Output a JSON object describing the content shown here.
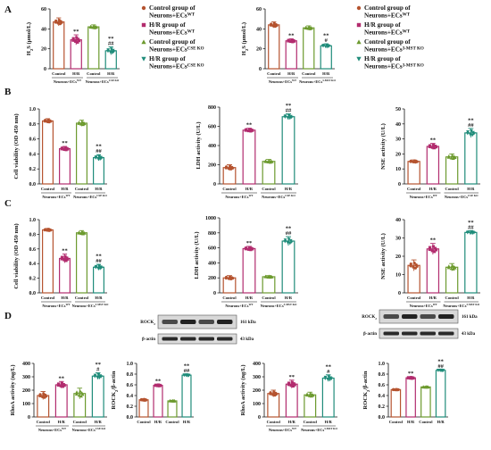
{
  "panel_letters": [
    "A",
    "B",
    "C",
    "D"
  ],
  "colors": {
    "control_wt": "#b5532f",
    "hr_wt": "#b22c6e",
    "control_ko": "#6c9a2e",
    "hr_ko": "#1f8c7a"
  },
  "legends": [
    {
      "entries": [
        {
          "label": "Control group of",
          "label2": "Neurons+ECsWT",
          "symbol": "circle",
          "color": "#b5532f"
        },
        {
          "label": "H/R group of",
          "label2": "Neurons+ECsWT",
          "symbol": "square",
          "color": "#b22c6e"
        },
        {
          "label": "Control group of",
          "label2": "Neurons+ECsCSE KO",
          "symbol": "triangle",
          "color": "#6c9a2e"
        },
        {
          "label": "H/R group of",
          "label2": "Neurons+ECsCSE KO",
          "symbol": "tri-down",
          "color": "#1f8c7a"
        }
      ]
    },
    {
      "entries": [
        {
          "label": "Control group of",
          "label2": "Neurons+ECsWT",
          "symbol": "circle",
          "color": "#b5532f"
        },
        {
          "label": "H/R group of",
          "label2": "Neurons+ECsWT",
          "symbol": "square",
          "color": "#b22c6e"
        },
        {
          "label": "Control group of",
          "label2": "Neurons+ECs3-MST KO",
          "symbol": "triangle",
          "color": "#6c9a2e"
        },
        {
          "label": "H/R group of",
          "label2": "Neurons+ECs3-MST KO",
          "symbol": "tri-down",
          "color": "#1f8c7a"
        }
      ]
    }
  ],
  "blots": [
    {
      "bands": [
        "ROCK2",
        "β-actin"
      ],
      "sizes": [
        "161 kDa",
        "43 kDa"
      ]
    },
    {
      "bands": [
        "ROCK2",
        "β-actin"
      ],
      "sizes": [
        "161 kDa",
        "43 kDa"
      ]
    }
  ],
  "chart_data": [
    {
      "id": "A1",
      "type": "bar",
      "ylabel": "H2S (μmol/L)",
      "ylim": [
        0,
        60
      ],
      "yticks": [
        0,
        20,
        40,
        60
      ],
      "categories": [
        "Control",
        "H/R",
        "Control",
        "H/R"
      ],
      "groups": [
        "Neurons+ECsWT",
        "Neurons+ECsCSE KO"
      ],
      "values": [
        47,
        29,
        42,
        18
      ],
      "errors": [
        4,
        5,
        2,
        4
      ],
      "sig": [
        "",
        "**",
        "",
        "**\n##"
      ]
    },
    {
      "id": "A2",
      "type": "bar",
      "ylabel": "H2S (μmol/L)",
      "ylim": [
        0,
        60
      ],
      "yticks": [
        0,
        20,
        40,
        60
      ],
      "categories": [
        "Control",
        "H/R",
        "Control",
        "H/R"
      ],
      "groups": [
        "Neurons+ECsWT",
        "Neurons+ECs3-MST KO"
      ],
      "values": [
        44,
        28,
        41,
        23
      ],
      "errors": [
        3,
        2,
        2,
        2
      ],
      "sig": [
        "",
        "**",
        "",
        "**\n#"
      ]
    },
    {
      "id": "B1",
      "type": "bar",
      "ylabel": "Cell viability (OD 450 nm)",
      "ylim": [
        0,
        1.0
      ],
      "yticks": [
        0.0,
        0.2,
        0.4,
        0.6,
        0.8,
        1.0
      ],
      "categories": [
        "Control",
        "H/R",
        "Control",
        "H/R"
      ],
      "groups": [
        "Neurons+ECsWT",
        "Neurons+ECsCSE KO"
      ],
      "values": [
        0.84,
        0.47,
        0.81,
        0.35
      ],
      "errors": [
        0.03,
        0.03,
        0.04,
        0.04
      ],
      "sig": [
        "",
        "**",
        "",
        "**\n##"
      ]
    },
    {
      "id": "B2",
      "type": "bar",
      "ylabel": "LDH activity (U/L)",
      "ylim": [
        0,
        800
      ],
      "yticks": [
        0,
        200,
        400,
        600,
        800
      ],
      "categories": [
        "Control",
        "H/R",
        "Control",
        "H/R"
      ],
      "groups": [
        "Neurons+ECsWT",
        "Neurons+ECsCSE KO"
      ],
      "values": [
        170,
        560,
        235,
        700
      ],
      "errors": [
        30,
        20,
        20,
        30
      ],
      "sig": [
        "",
        "**",
        "",
        "**\n##"
      ]
    },
    {
      "id": "B3",
      "type": "bar",
      "ylabel": "NSE activity (U/L)",
      "ylim": [
        0,
        50
      ],
      "yticks": [
        0,
        10,
        20,
        30,
        40,
        50
      ],
      "categories": [
        "Control",
        "H/R",
        "Control",
        "H/R"
      ],
      "groups": [
        "Neurons+ECsWT",
        "Neurons+ECsCSE KO"
      ],
      "values": [
        15,
        25,
        18,
        34
      ],
      "errors": [
        1,
        2,
        2,
        3
      ],
      "sig": [
        "",
        "**",
        "",
        "**\n##"
      ]
    },
    {
      "id": "C1",
      "type": "bar",
      "ylabel": "Cell viability (OD 450 nm)",
      "ylim": [
        0,
        1.0
      ],
      "yticks": [
        0.0,
        0.2,
        0.4,
        0.6,
        0.8,
        1.0
      ],
      "categories": [
        "Control",
        "H/R",
        "Control",
        "H/R"
      ],
      "groups": [
        "Neurons+ECsWT",
        "Neurons+ECs3-MST KO"
      ],
      "values": [
        0.86,
        0.47,
        0.82,
        0.35
      ],
      "errors": [
        0.02,
        0.06,
        0.03,
        0.04
      ],
      "sig": [
        "",
        "**",
        "",
        "**\n##"
      ]
    },
    {
      "id": "C2",
      "type": "bar",
      "ylabel": "LDH activity (U/L)",
      "ylim": [
        0,
        1000
      ],
      "yticks": [
        0,
        200,
        400,
        600,
        800,
        1000
      ],
      "categories": [
        "Control",
        "H/R",
        "Control",
        "H/R"
      ],
      "groups": [
        "Neurons+ECsWT",
        "Neurons+ECs3-MST KO"
      ],
      "values": [
        200,
        590,
        215,
        690
      ],
      "errors": [
        30,
        30,
        15,
        60
      ],
      "sig": [
        "",
        "**",
        "",
        "**\n##"
      ]
    },
    {
      "id": "C3",
      "type": "bar",
      "ylabel": "NSE activity (U/L)",
      "ylim": [
        0,
        40
      ],
      "yticks": [
        0,
        10,
        20,
        30,
        40
      ],
      "categories": [
        "Control",
        "H/R",
        "Control",
        "H/R"
      ],
      "groups": [
        "Neurons+ECsWT",
        "Neurons+ECs3-MST KO"
      ],
      "values": [
        15,
        24,
        14,
        33
      ],
      "errors": [
        3,
        3,
        2,
        1
      ],
      "sig": [
        "",
        "**",
        "",
        "**\n##"
      ]
    },
    {
      "id": "D1",
      "type": "bar",
      "ylabel": "RhoA activity (ng/L)",
      "ylim": [
        0,
        400
      ],
      "yticks": [
        0,
        100,
        200,
        300,
        400
      ],
      "categories": [
        "Control",
        "H/R",
        "Control",
        "H/R"
      ],
      "groups": [
        "Neurons+ECsWT",
        "Neurons+ECsCSE KO"
      ],
      "values": [
        160,
        240,
        175,
        305
      ],
      "errors": [
        30,
        25,
        40,
        25
      ],
      "sig": [
        "",
        "**",
        "",
        "**\n#"
      ]
    },
    {
      "id": "D2",
      "type": "bar",
      "ylabel": "ROCK2/β-actin",
      "ylim": [
        0,
        1.0
      ],
      "yticks": [
        0.0,
        0.2,
        0.4,
        0.6,
        0.8,
        1.0
      ],
      "categories": [
        "Control",
        "H/R",
        "Control",
        "H/R"
      ],
      "groups": [],
      "values": [
        0.32,
        0.59,
        0.3,
        0.78
      ],
      "errors": [
        0.02,
        0.02,
        0.01,
        0.02
      ],
      "sig": [
        "",
        "**",
        "",
        "**\n##"
      ]
    },
    {
      "id": "D3",
      "type": "bar",
      "ylabel": "RhoA activity (ng/L)",
      "ylim": [
        0,
        400
      ],
      "yticks": [
        0,
        100,
        200,
        300,
        400
      ],
      "categories": [
        "Control",
        "H/R",
        "Control",
        "H/R"
      ],
      "groups": [
        "Neurons+ECsWT",
        "Neurons+ECs3-MST KO"
      ],
      "values": [
        175,
        245,
        165,
        290
      ],
      "errors": [
        25,
        30,
        20,
        25
      ],
      "sig": [
        "",
        "**",
        "",
        "**\n#"
      ]
    },
    {
      "id": "D4",
      "type": "bar",
      "ylabel": "ROCK2/β-actin",
      "ylim": [
        0,
        1.0
      ],
      "yticks": [
        0.0,
        0.2,
        0.4,
        0.6,
        0.8,
        1.0
      ],
      "categories": [
        "Control",
        "H/R",
        "Control",
        "H/R"
      ],
      "groups": [],
      "values": [
        0.51,
        0.73,
        0.56,
        0.87
      ],
      "errors": [
        0.01,
        0.02,
        0.01,
        0.01
      ],
      "sig": [
        "",
        "**",
        "",
        "**\n##"
      ]
    }
  ]
}
